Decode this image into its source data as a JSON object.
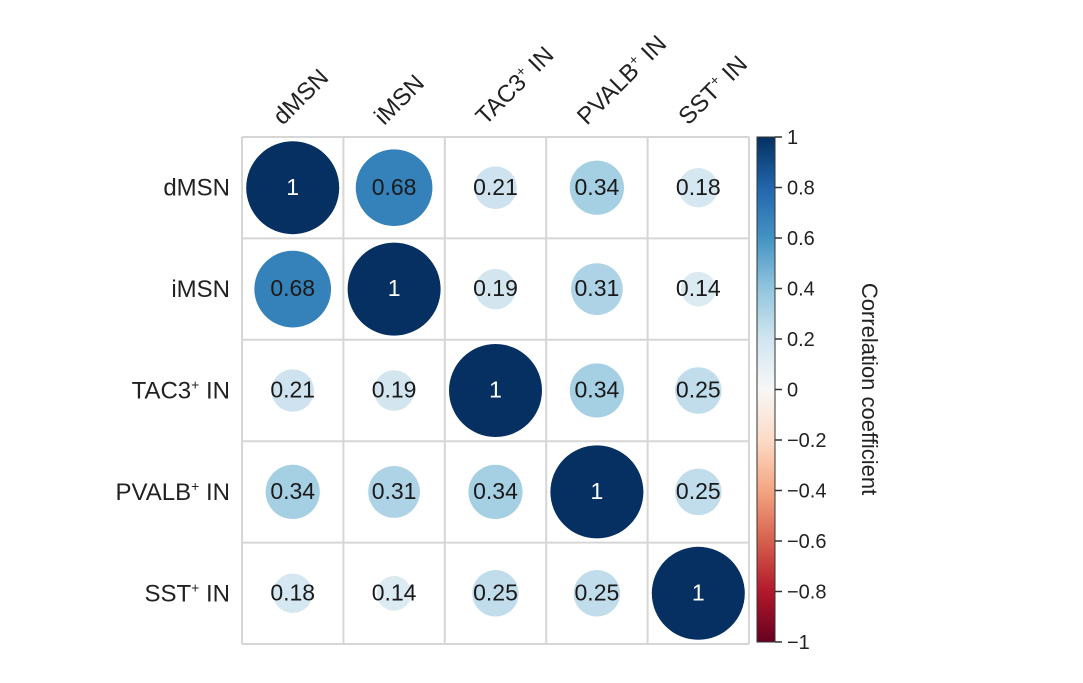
{
  "chart_data": {
    "type": "heatmap",
    "style": "correlation-circles",
    "rows": [
      "dMSN",
      "iMSN",
      "TAC3",
      "PVALB",
      "SST"
    ],
    "row_superscripts": [
      "",
      "",
      "+",
      "+",
      "+"
    ],
    "row_suffixes": [
      "",
      "",
      " IN",
      " IN",
      " IN"
    ],
    "columns": [
      "dMSN",
      "iMSN",
      "TAC3",
      "PVALB",
      "SST"
    ],
    "column_superscripts": [
      "",
      "",
      "+",
      "+",
      "+"
    ],
    "column_suffixes": [
      "",
      "",
      " IN",
      " IN",
      " IN"
    ],
    "values": [
      [
        1,
        0.68,
        0.21,
        0.34,
        0.18
      ],
      [
        0.68,
        1,
        0.19,
        0.31,
        0.14
      ],
      [
        0.21,
        0.19,
        1,
        0.34,
        0.25
      ],
      [
        0.34,
        0.31,
        0.34,
        1,
        0.25
      ],
      [
        0.18,
        0.14,
        0.25,
        0.25,
        1
      ]
    ],
    "value_labels": [
      [
        "1",
        "0.68",
        "0.21",
        "0.34",
        "0.18"
      ],
      [
        "0.68",
        "1",
        "0.19",
        "0.31",
        "0.14"
      ],
      [
        "0.21",
        "0.19",
        "1",
        "0.34",
        "0.25"
      ],
      [
        "0.34",
        "0.31",
        "0.34",
        "1",
        "0.25"
      ],
      [
        "0.18",
        "0.14",
        "0.25",
        "0.25",
        "1"
      ]
    ],
    "colorbar": {
      "label": "Correlation coefficient",
      "range": [
        -1,
        1
      ],
      "ticks": [
        "1",
        "0.8",
        "0.6",
        "0.4",
        "0.2",
        "0",
        "−0.2",
        "−0.4",
        "−0.6",
        "−0.8",
        "−1"
      ],
      "tick_values": [
        1,
        0.8,
        0.6,
        0.4,
        0.2,
        0,
        -0.2,
        -0.4,
        -0.6,
        -0.8,
        -1
      ],
      "colors": [
        "#67001f",
        "#b2182b",
        "#d6604d",
        "#f4a582",
        "#fddbc7",
        "#f7f7f7",
        "#d1e5f0",
        "#92c5de",
        "#4393c3",
        "#2166ac",
        "#053061"
      ]
    },
    "grid": true
  }
}
